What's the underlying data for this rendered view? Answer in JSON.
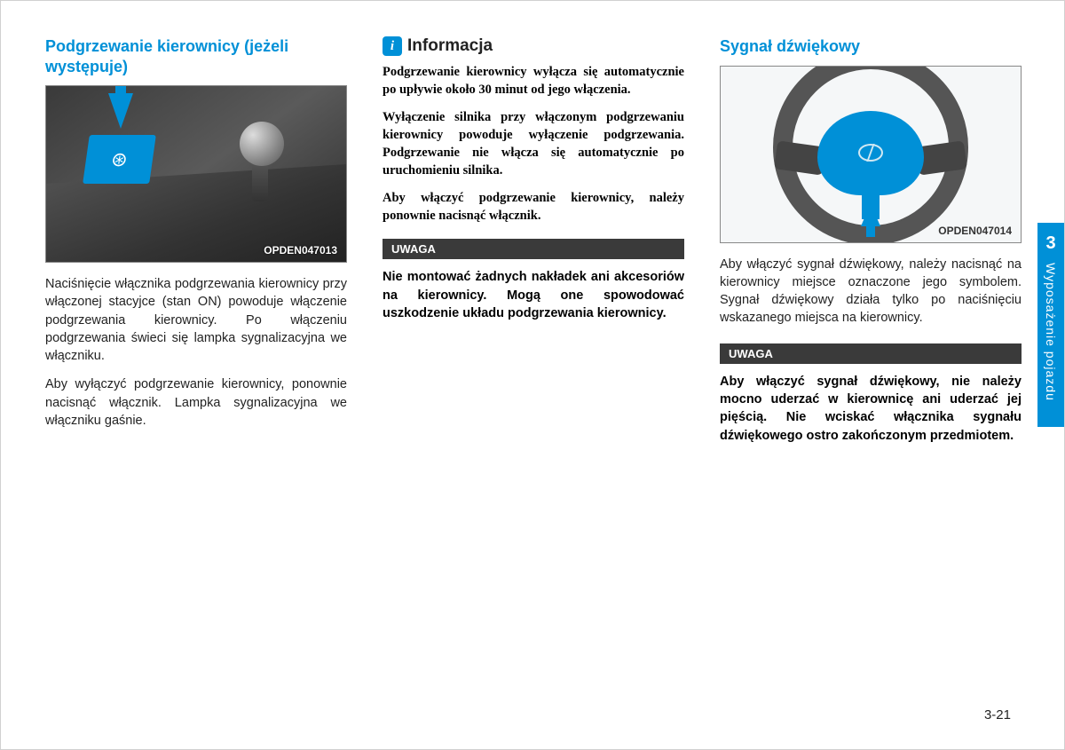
{
  "page": {
    "number": "3-21",
    "chapter_number": "3",
    "chapter_title": "Wyposażenie pojazdu"
  },
  "col1": {
    "heading": "Podgrzewanie kierownicy (jeżeli występuje)",
    "image_code": "OPDEN047013",
    "p1": "Naciśnięcie włącznika podgrzewania kierownicy przy włączonej stacyjce (stan ON) powoduje włączenie podgrzewania kierownicy. Po włączeniu podgrzewania świeci się lampka sygnalizacyjna we włączniku.",
    "p2": "Aby wyłączyć podgrzewanie kierownicy, ponownie nacisnąć włącznik. Lampka sygnalizacyjna we włączniku gaśnie."
  },
  "col2": {
    "info_title": "Informacja",
    "info_p1": "Podgrzewanie kierownicy wyłącza się automatycznie po upływie około 30 minut od jego włączenia.",
    "info_p2": "Wyłączenie silnika przy włączonym podgrzewaniu kierownicy powoduje wyłączenie podgrzewania. Podgrzewanie nie włącza się automatycznie po uruchomieniu silnika.",
    "info_p3": "Aby włączyć podgrzewanie kierownicy, należy ponownie nacisnąć włącznik.",
    "uwaga_label": "UWAGA",
    "uwaga_text": "Nie montować żadnych nakładek ani akcesoriów na kierownicy. Mogą one spowodować uszkodzenie układu podgrzewania kierownicy."
  },
  "col3": {
    "heading": "Sygnał dźwiękowy",
    "image_code": "OPDEN047014",
    "p1": "Aby włączyć sygnał dźwiękowy, należy nacisnąć na kierownicy miejsce oznaczone jego symbolem. Sygnał dźwiękowy działa tylko po naciśnięciu wskazanego miejsca na kierownicy.",
    "uwaga_label": "UWAGA",
    "uwaga_text": "Aby włączyć sygnał dźwiękowy, nie należy mocno uderzać w kierownicę ani uderzać jej pięścią. Nie wciskać włącznika sygnału dźwiękowego ostro zakończonym przedmiotem."
  },
  "colors": {
    "accent": "#0090d7",
    "text": "#222222",
    "tag_bg": "#3a3a3a"
  }
}
